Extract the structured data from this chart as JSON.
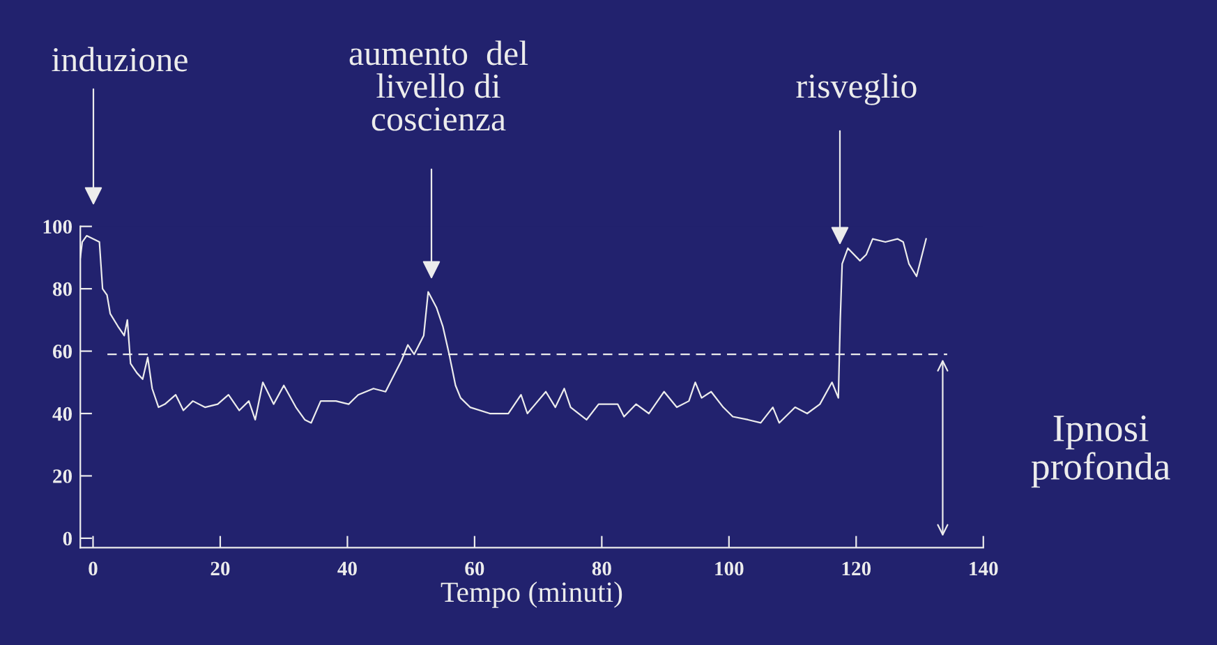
{
  "chart_data": {
    "type": "line",
    "xlabel": "Tempo (minuti)",
    "xlim": [
      -2,
      140
    ],
    "xticks": [
      0,
      20,
      40,
      60,
      80,
      100,
      120,
      140
    ],
    "ylim": [
      -3,
      100
    ],
    "yticks": [
      0,
      20,
      40,
      60,
      80,
      100
    ],
    "grid": false,
    "legend": false,
    "series": [
      {
        "color": "#ececec",
        "x": [
          -2,
          -1.7,
          -1,
          0,
          1,
          1.5,
          2.2,
          2.7,
          3.9,
          4.9,
          5.4,
          5.9,
          6.9,
          7.8,
          8.6,
          9.3,
          10.3,
          11.3,
          13,
          14.2,
          15.7,
          17.6,
          19.6,
          21.3,
          23,
          24.5,
          25.5,
          26.7,
          28.4,
          30,
          31.9,
          33.3,
          34.3,
          35.8,
          38.2,
          40.2,
          41.7,
          44.1,
          46,
          47,
          48.5,
          49.5,
          50.5,
          52,
          52.7,
          54,
          55,
          56,
          57,
          57.8,
          59.3,
          62.4,
          65.3,
          67.3,
          68.3,
          71.2,
          72.7,
          74.1,
          75.1,
          77.6,
          79.5,
          82.5,
          83.5,
          85.4,
          87.4,
          89.8,
          91.8,
          93.7,
          94.7,
          95.7,
          97.2,
          99.1,
          100.6,
          103,
          105,
          106.9,
          107.9,
          110.4,
          112.3,
          114.3,
          116.2,
          117.2,
          117.5,
          117.8,
          118.7,
          120.6,
          121.6,
          122.6,
          124.6,
          126.5,
          127.4,
          128.3,
          129.5,
          131
        ],
        "values": [
          90,
          95,
          97,
          96,
          95,
          80,
          78,
          72,
          68,
          65,
          70,
          56,
          53,
          51,
          58,
          48,
          42,
          43,
          46,
          41,
          44,
          42,
          43,
          46,
          41,
          44,
          38,
          50,
          43,
          49,
          42,
          38,
          37,
          44,
          44,
          43,
          46,
          48,
          47,
          51,
          57,
          62,
          59,
          65,
          79,
          74,
          68,
          59,
          49,
          45,
          42,
          40,
          40,
          46,
          40,
          47,
          42,
          48,
          42,
          38,
          43,
          43,
          39,
          43,
          40,
          47,
          42,
          44,
          50,
          45,
          47,
          42,
          39,
          38,
          37,
          42,
          37,
          42,
          40,
          43,
          50,
          45,
          70,
          88,
          93,
          89,
          91,
          96,
          95,
          96,
          95,
          88,
          84,
          96
        ]
      }
    ],
    "ref_lines": [
      {
        "axis": "y",
        "value": 59,
        "label": "Ipnosi profonda",
        "color": "#ececec",
        "line_style": "dashed"
      }
    ],
    "annotations": [
      "induzione",
      "aumento  del\nlivello di\ncoscienza",
      "risveglio"
    ]
  }
}
